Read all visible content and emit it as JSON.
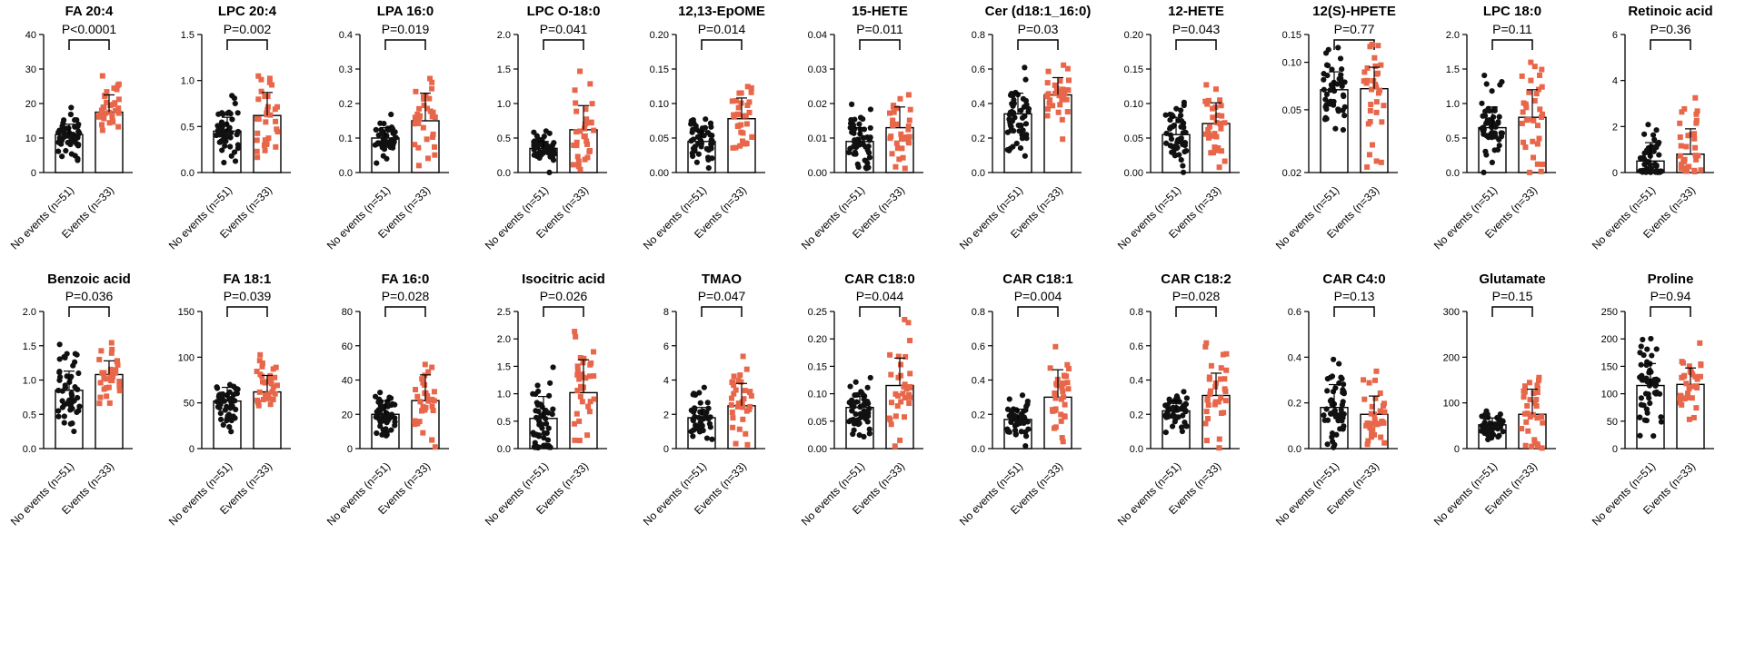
{
  "group_labels": [
    "No events (n=51)",
    "Events (n=33)"
  ],
  "colors": {
    "no_events": "#111111",
    "events": "#e8674a",
    "bar_fill": "#ffffff",
    "axis": "#000000"
  },
  "chart_data": [
    {
      "type": "bar",
      "title": "FA 20:4",
      "pvalue": "P<0.0001",
      "ylim": [
        0,
        40
      ],
      "yticks": [
        "0",
        "10",
        "20",
        "30",
        "40"
      ],
      "means": [
        11,
        17.5
      ],
      "sds": [
        3,
        5
      ]
    },
    {
      "type": "bar",
      "title": "LPC 20:4",
      "pvalue": "P=0.002",
      "ylim": [
        0,
        1.5
      ],
      "yticks": [
        "0.0",
        "0.5",
        "1.0",
        "1.5"
      ],
      "means": [
        0.45,
        0.62
      ],
      "sds": [
        0.15,
        0.25
      ]
    },
    {
      "type": "bar",
      "title": "LPA 16:0",
      "pvalue": "P=0.019",
      "ylim": [
        0,
        0.4
      ],
      "yticks": [
        "0.0",
        "0.1",
        "0.2",
        "0.3",
        "0.4"
      ],
      "means": [
        0.1,
        0.15
      ],
      "sds": [
        0.03,
        0.08
      ]
    },
    {
      "type": "bar",
      "title": "LPC O-18:0",
      "pvalue": "P=0.041",
      "ylim": [
        0,
        2.0
      ],
      "yticks": [
        "0.0",
        "0.5",
        "1.0",
        "1.5",
        "2.0"
      ],
      "means": [
        0.35,
        0.62
      ],
      "sds": [
        0.1,
        0.35
      ]
    },
    {
      "type": "bar",
      "title": "12,13-EpOME",
      "pvalue": "P=0.014",
      "ylim": [
        0,
        0.2
      ],
      "yticks": [
        "0.00",
        "0.05",
        "0.10",
        "0.15",
        "0.20"
      ],
      "means": [
        0.045,
        0.078
      ],
      "sds": [
        0.015,
        0.03
      ]
    },
    {
      "type": "bar",
      "title": "15-HETE",
      "pvalue": "P=0.011",
      "ylim": [
        0,
        0.04
      ],
      "yticks": [
        "0.00",
        "0.01",
        "0.02",
        "0.03",
        "0.04"
      ],
      "means": [
        0.009,
        0.013
      ],
      "sds": [
        0.004,
        0.006
      ]
    },
    {
      "type": "bar",
      "title": "Cer (d18:1_16:0)",
      "pvalue": "P=0.03",
      "ylim": [
        0,
        0.8
      ],
      "yticks": [
        "0.0",
        "0.2",
        "0.4",
        "0.6",
        "0.8"
      ],
      "means": [
        0.34,
        0.45
      ],
      "sds": [
        0.12,
        0.1
      ]
    },
    {
      "type": "bar",
      "title": "12-HETE",
      "pvalue": "P=0.043",
      "ylim": [
        0,
        0.2
      ],
      "yticks": [
        "0.00",
        "0.05",
        "0.10",
        "0.15",
        "0.20"
      ],
      "means": [
        0.055,
        0.071
      ],
      "sds": [
        0.025,
        0.03
      ]
    },
    {
      "type": "bar",
      "title": "12(S)-HPETE",
      "pvalue": "P=0.77",
      "ylim": [
        0.02,
        0.15
      ],
      "yticks": [
        "0.02",
        "0.05",
        "0.10",
        "0.15"
      ],
      "tickvalues": [
        0.02,
        0.05,
        0.1,
        0.15
      ],
      "scale": "log",
      "means": [
        0.067,
        0.068
      ],
      "sds": [
        0.02,
        0.025
      ]
    },
    {
      "type": "bar",
      "title": "LPC 18:0",
      "pvalue": "P=0.11",
      "ylim": [
        0,
        2.0
      ],
      "yticks": [
        "0.0",
        "0.5",
        "1.0",
        "1.5",
        "2.0"
      ],
      "means": [
        0.65,
        0.8
      ],
      "sds": [
        0.3,
        0.4
      ]
    },
    {
      "type": "bar",
      "title": "Retinoic acid",
      "pvalue": "P=0.36",
      "ylim": [
        0,
        6
      ],
      "yticks": [
        "0",
        "2",
        "4",
        "6"
      ],
      "means": [
        0.5,
        0.8
      ],
      "sds": [
        0.8,
        1.1
      ]
    },
    {
      "type": "bar",
      "title": "Benzoic acid",
      "pvalue": "P=0.036",
      "ylim": [
        0,
        2.0
      ],
      "yticks": [
        "0.0",
        "0.5",
        "1.0",
        "1.5",
        "2.0"
      ],
      "means": [
        0.85,
        1.08
      ],
      "sds": [
        0.28,
        0.2
      ]
    },
    {
      "type": "bar",
      "title": "FA 18:1",
      "pvalue": "P=0.039",
      "ylim": [
        0,
        150
      ],
      "yticks": [
        "0",
        "50",
        "100",
        "150"
      ],
      "means": [
        52,
        62
      ],
      "sds": [
        15,
        18
      ]
    },
    {
      "type": "bar",
      "title": "FA 16:0",
      "pvalue": "P=0.028",
      "ylim": [
        0,
        80
      ],
      "yticks": [
        "0",
        "20",
        "40",
        "60",
        "80"
      ],
      "means": [
        20,
        28
      ],
      "sds": [
        8,
        15
      ]
    },
    {
      "type": "bar",
      "title": "Isocitric acid",
      "pvalue": "P=0.026",
      "ylim": [
        0,
        2.5
      ],
      "yticks": [
        "0.0",
        "0.5",
        "1.0",
        "1.5",
        "2.0",
        "2.5"
      ],
      "means": [
        0.55,
        1.02
      ],
      "sds": [
        0.4,
        0.6
      ]
    },
    {
      "type": "bar",
      "title": "TMAO",
      "pvalue": "P=0.047",
      "ylim": [
        0,
        8
      ],
      "yticks": [
        "0",
        "2",
        "4",
        "6",
        "8"
      ],
      "means": [
        1.8,
        2.5
      ],
      "sds": [
        0.6,
        1.3
      ]
    },
    {
      "type": "bar",
      "title": "CAR C18:0",
      "pvalue": "P=0.044",
      "ylim": [
        0,
        0.25
      ],
      "yticks": [
        "0.00",
        "0.05",
        "0.10",
        "0.15",
        "0.20",
        "0.25"
      ],
      "means": [
        0.075,
        0.115
      ],
      "sds": [
        0.02,
        0.05
      ]
    },
    {
      "type": "bar",
      "title": "CAR C18:1",
      "pvalue": "P=0.004",
      "ylim": [
        0,
        0.8
      ],
      "yticks": [
        "0.0",
        "0.2",
        "0.4",
        "0.6",
        "0.8"
      ],
      "means": [
        0.17,
        0.3
      ],
      "sds": [
        0.06,
        0.16
      ]
    },
    {
      "type": "bar",
      "title": "CAR C18:2",
      "pvalue": "P=0.028",
      "ylim": [
        0,
        0.8
      ],
      "yticks": [
        "0.0",
        "0.2",
        "0.4",
        "0.6",
        "0.8"
      ],
      "means": [
        0.22,
        0.31
      ],
      "sds": [
        0.06,
        0.13
      ]
    },
    {
      "type": "bar",
      "title": "CAR C4:0",
      "pvalue": "P=0.13",
      "ylim": [
        0,
        0.6
      ],
      "yticks": [
        "0.0",
        "0.2",
        "0.4",
        "0.6"
      ],
      "means": [
        0.18,
        0.15
      ],
      "sds": [
        0.1,
        0.08
      ]
    },
    {
      "type": "bar",
      "title": "Glutamate",
      "pvalue": "P=0.15",
      "ylim": [
        0,
        300
      ],
      "yticks": [
        "0",
        "100",
        "200",
        "300"
      ],
      "means": [
        52,
        75
      ],
      "sds": [
        15,
        55
      ]
    },
    {
      "type": "bar",
      "title": "Proline",
      "pvalue": "P=0.94",
      "ylim": [
        0,
        250
      ],
      "yticks": [
        "0",
        "50",
        "100",
        "150",
        "200",
        "250"
      ],
      "means": [
        115,
        117
      ],
      "sds": [
        40,
        30
      ]
    }
  ]
}
